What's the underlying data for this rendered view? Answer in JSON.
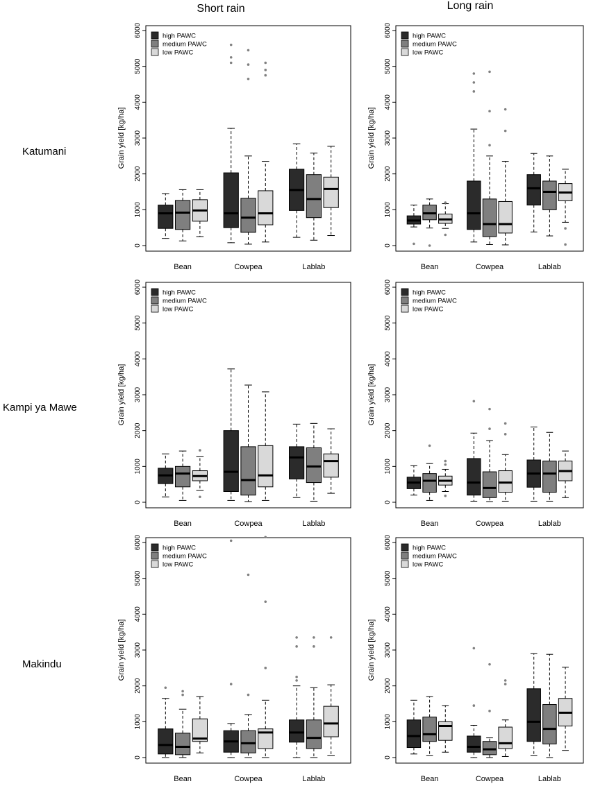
{
  "column_titles": [
    "Short rain",
    "Long rain"
  ],
  "row_labels": [
    "Katumani",
    "Kampi ya Mawe",
    "Makindu"
  ],
  "colors": {
    "high PAWC": "#2b2b2b",
    "medium PAWC": "#7f7f7f",
    "low PAWC": "#d9d9d9"
  },
  "chart_data": [
    {
      "type": "boxplot",
      "title": "Katumani – Short rain",
      "ylabel": "Grain yield [kg/ha]",
      "ylim": [
        0,
        6000
      ],
      "yticks": [
        0,
        1000,
        2000,
        3000,
        4000,
        5000,
        6000
      ],
      "categories": [
        "Bean",
        "Cowpea",
        "Lablab"
      ],
      "legend": [
        "high PAWC",
        "medium PAWC",
        "low PAWC"
      ],
      "legend_position": "top-left",
      "series": [
        {
          "name": "high PAWC",
          "boxes": [
            {
              "whisker_low": 200,
              "q1": 480,
              "median": 900,
              "q3": 1130,
              "whisker_high": 1450,
              "outliers": []
            },
            {
              "whisker_low": 80,
              "q1": 500,
              "median": 900,
              "q3": 2030,
              "whisker_high": 3270,
              "outliers": [
                5100,
                5250,
                5600
              ]
            },
            {
              "whisker_low": 230,
              "q1": 980,
              "median": 1550,
              "q3": 2130,
              "whisker_high": 2840,
              "outliers": []
            }
          ]
        },
        {
          "name": "medium PAWC",
          "boxes": [
            {
              "whisker_low": 130,
              "q1": 450,
              "median": 920,
              "q3": 1260,
              "whisker_high": 1560,
              "outliers": []
            },
            {
              "whisker_low": 40,
              "q1": 370,
              "median": 780,
              "q3": 1320,
              "whisker_high": 2500,
              "outliers": [
                4650,
                5050,
                5450
              ]
            },
            {
              "whisker_low": 150,
              "q1": 780,
              "median": 1300,
              "q3": 1980,
              "whisker_high": 2580,
              "outliers": []
            }
          ]
        },
        {
          "name": "low PAWC",
          "boxes": [
            {
              "whisker_low": 250,
              "q1": 680,
              "median": 980,
              "q3": 1280,
              "whisker_high": 1560,
              "outliers": []
            },
            {
              "whisker_low": 100,
              "q1": 580,
              "median": 900,
              "q3": 1530,
              "whisker_high": 2350,
              "outliers": [
                4750,
                4900,
                5100
              ]
            },
            {
              "whisker_low": 280,
              "q1": 1060,
              "median": 1580,
              "q3": 1910,
              "whisker_high": 2770,
              "outliers": []
            }
          ]
        }
      ]
    },
    {
      "type": "boxplot",
      "title": "Katumani – Long rain",
      "ylabel": "Grain yield [kg/ha]",
      "ylim": [
        0,
        6000
      ],
      "yticks": [
        0,
        1000,
        2000,
        3000,
        4000,
        5000,
        6000
      ],
      "categories": [
        "Bean",
        "Cowpea",
        "Lablab"
      ],
      "legend": [
        "high PAWC",
        "medium PAWC",
        "low PAWC"
      ],
      "legend_position": "top-left",
      "series": [
        {
          "name": "high PAWC",
          "boxes": [
            {
              "whisker_low": 520,
              "q1": 600,
              "median": 700,
              "q3": 830,
              "whisker_high": 1130,
              "outliers": [
                50
              ]
            },
            {
              "whisker_low": 100,
              "q1": 450,
              "median": 900,
              "q3": 1800,
              "whisker_high": 3250,
              "outliers": [
                4300,
                4550,
                4800
              ]
            },
            {
              "whisker_low": 380,
              "q1": 1130,
              "median": 1600,
              "q3": 1980,
              "whisker_high": 2570,
              "outliers": []
            }
          ]
        },
        {
          "name": "medium PAWC",
          "boxes": [
            {
              "whisker_low": 490,
              "q1": 720,
              "median": 900,
              "q3": 1130,
              "whisker_high": 1300,
              "outliers": [
                0
              ]
            },
            {
              "whisker_low": 30,
              "q1": 250,
              "median": 600,
              "q3": 1300,
              "whisker_high": 2500,
              "outliers": [
                2800,
                3750,
                4850
              ]
            },
            {
              "whisker_low": 270,
              "q1": 1000,
              "median": 1500,
              "q3": 1800,
              "whisker_high": 2500,
              "outliers": []
            }
          ]
        },
        {
          "name": "low PAWC",
          "boxes": [
            {
              "whisker_low": 480,
              "q1": 620,
              "median": 730,
              "q3": 880,
              "whisker_high": 1170,
              "outliers": [
                300,
                1200
              ]
            },
            {
              "whisker_low": 20,
              "q1": 350,
              "median": 600,
              "q3": 1230,
              "whisker_high": 2350,
              "outliers": [
                3200,
                3800
              ]
            },
            {
              "whisker_low": 650,
              "q1": 1250,
              "median": 1480,
              "q3": 1730,
              "whisker_high": 2130,
              "outliers": [
                30,
                480
              ]
            }
          ]
        }
      ]
    },
    {
      "type": "boxplot",
      "title": "Kampi ya Mawe – Short rain",
      "ylabel": "Grain yield [kg/ha]",
      "ylim": [
        0,
        6000
      ],
      "yticks": [
        0,
        1000,
        2000,
        3000,
        4000,
        5000,
        6000
      ],
      "categories": [
        "Bean",
        "Cowpea",
        "Lablab"
      ],
      "legend": [
        "high PAWC",
        "medium PAWC",
        "low PAWC"
      ],
      "legend_position": "top-left",
      "series": [
        {
          "name": "high PAWC",
          "boxes": [
            {
              "whisker_low": 150,
              "q1": 520,
              "median": 750,
              "q3": 950,
              "whisker_high": 1350,
              "outliers": []
            },
            {
              "whisker_low": 50,
              "q1": 300,
              "median": 850,
              "q3": 2000,
              "whisker_high": 3720,
              "outliers": []
            },
            {
              "whisker_low": 130,
              "q1": 650,
              "median": 1250,
              "q3": 1550,
              "whisker_high": 2180,
              "outliers": []
            }
          ]
        },
        {
          "name": "medium PAWC",
          "boxes": [
            {
              "whisker_low": 50,
              "q1": 430,
              "median": 800,
              "q3": 1000,
              "whisker_high": 1430,
              "outliers": []
            },
            {
              "whisker_low": 20,
              "q1": 200,
              "median": 620,
              "q3": 1550,
              "whisker_high": 3270,
              "outliers": []
            },
            {
              "whisker_low": 30,
              "q1": 550,
              "median": 1000,
              "q3": 1520,
              "whisker_high": 2200,
              "outliers": []
            }
          ]
        },
        {
          "name": "low PAWC",
          "boxes": [
            {
              "whisker_low": 330,
              "q1": 600,
              "median": 730,
              "q3": 880,
              "whisker_high": 1270,
              "outliers": [
                150,
                1450
              ]
            },
            {
              "whisker_low": 50,
              "q1": 430,
              "median": 750,
              "q3": 1580,
              "whisker_high": 3080,
              "outliers": []
            },
            {
              "whisker_low": 250,
              "q1": 700,
              "median": 1150,
              "q3": 1350,
              "whisker_high": 2050,
              "outliers": []
            }
          ]
        }
      ]
    },
    {
      "type": "boxplot",
      "title": "Kampi ya Mawe – Long rain",
      "ylabel": "Grain yield [kg/ha]",
      "ylim": [
        0,
        6000
      ],
      "yticks": [
        0,
        1000,
        2000,
        3000,
        4000,
        5000,
        6000
      ],
      "categories": [
        "Bean",
        "Cowpea",
        "Lablab"
      ],
      "legend": [
        "high PAWC",
        "medium PAWC",
        "low PAWC"
      ],
      "legend_position": "top-left",
      "series": [
        {
          "name": "high PAWC",
          "boxes": [
            {
              "whisker_low": 200,
              "q1": 380,
              "median": 550,
              "q3": 700,
              "whisker_high": 1020,
              "outliers": []
            },
            {
              "whisker_low": 30,
              "q1": 200,
              "median": 550,
              "q3": 1220,
              "whisker_high": 1930,
              "outliers": [
                2820
              ]
            },
            {
              "whisker_low": 30,
              "q1": 420,
              "median": 800,
              "q3": 1180,
              "whisker_high": 2100,
              "outliers": []
            }
          ]
        },
        {
          "name": "medium PAWC",
          "boxes": [
            {
              "whisker_low": 50,
              "q1": 280,
              "median": 600,
              "q3": 800,
              "whisker_high": 1080,
              "outliers": [
                1580
              ]
            },
            {
              "whisker_low": 20,
              "q1": 130,
              "median": 400,
              "q3": 850,
              "whisker_high": 1720,
              "outliers": [
                2050,
                2600
              ]
            },
            {
              "whisker_low": 30,
              "q1": 280,
              "median": 800,
              "q3": 1150,
              "whisker_high": 1950,
              "outliers": []
            }
          ]
        },
        {
          "name": "low PAWC",
          "boxes": [
            {
              "whisker_low": 300,
              "q1": 480,
              "median": 600,
              "q3": 730,
              "whisker_high": 920,
              "outliers": [
                180,
                1050,
                1150
              ]
            },
            {
              "whisker_low": 30,
              "q1": 280,
              "median": 550,
              "q3": 880,
              "whisker_high": 1330,
              "outliers": [
                1900,
                2200
              ]
            },
            {
              "whisker_low": 130,
              "q1": 600,
              "median": 870,
              "q3": 1150,
              "whisker_high": 1430,
              "outliers": []
            }
          ]
        }
      ]
    },
    {
      "type": "boxplot",
      "title": "Makindu – Short rain",
      "ylabel": "Grain yield [kg/ha]",
      "ylim": [
        0,
        6000
      ],
      "yticks": [
        0,
        1000,
        2000,
        3000,
        4000,
        5000,
        6000
      ],
      "categories": [
        "Bean",
        "Cowpea",
        "Lablab"
      ],
      "legend": [
        "high PAWC",
        "medium PAWC",
        "low PAWC"
      ],
      "legend_position": "top-left",
      "series": [
        {
          "name": "high PAWC",
          "boxes": [
            {
              "whisker_low": 0,
              "q1": 100,
              "median": 350,
              "q3": 800,
              "whisker_high": 1650,
              "outliers": [
                1950
              ]
            },
            {
              "whisker_low": 0,
              "q1": 150,
              "median": 450,
              "q3": 750,
              "whisker_high": 950,
              "outliers": [
                2050,
                6050
              ]
            },
            {
              "whisker_low": 0,
              "q1": 430,
              "median": 700,
              "q3": 1050,
              "whisker_high": 2000,
              "outliers": [
                2150,
                2250,
                3100,
                3350
              ]
            }
          ]
        },
        {
          "name": "medium PAWC",
          "boxes": [
            {
              "whisker_low": 0,
              "q1": 80,
              "median": 300,
              "q3": 680,
              "whisker_high": 1350,
              "outliers": [
                1750,
                1850
              ]
            },
            {
              "whisker_low": 0,
              "q1": 130,
              "median": 400,
              "q3": 750,
              "whisker_high": 1200,
              "outliers": [
                1750,
                5100
              ]
            },
            {
              "whisker_low": 0,
              "q1": 250,
              "median": 550,
              "q3": 1050,
              "whisker_high": 1950,
              "outliers": [
                3100,
                3350
              ]
            }
          ]
        },
        {
          "name": "low PAWC",
          "boxes": [
            {
              "whisker_low": 130,
              "q1": 450,
              "median": 530,
              "q3": 1080,
              "whisker_high": 1700,
              "outliers": []
            },
            {
              "whisker_low": 0,
              "q1": 250,
              "median": 700,
              "q3": 800,
              "whisker_high": 1600,
              "outliers": [
                2500,
                4350,
                6150
              ]
            },
            {
              "whisker_low": 50,
              "q1": 580,
              "median": 950,
              "q3": 1430,
              "whisker_high": 2030,
              "outliers": [
                3350
              ]
            }
          ]
        }
      ]
    },
    {
      "type": "boxplot",
      "title": "Makindu – Long rain",
      "ylabel": "Grain yield [kg/ha]",
      "ylim": [
        0,
        6000
      ],
      "yticks": [
        0,
        1000,
        2000,
        3000,
        4000,
        5000,
        6000
      ],
      "categories": [
        "Bean",
        "Cowpea",
        "Lablab"
      ],
      "legend": [
        "high PAWC",
        "medium PAWC",
        "low PAWC"
      ],
      "legend_position": "top-left",
      "series": [
        {
          "name": "high PAWC",
          "boxes": [
            {
              "whisker_low": 100,
              "q1": 280,
              "median": 600,
              "q3": 1050,
              "whisker_high": 1600,
              "outliers": []
            },
            {
              "whisker_low": 0,
              "q1": 150,
              "median": 300,
              "q3": 600,
              "whisker_high": 900,
              "outliers": [
                1450,
                3050
              ]
            },
            {
              "whisker_low": 50,
              "q1": 450,
              "median": 1000,
              "q3": 1920,
              "whisker_high": 2900,
              "outliers": []
            }
          ]
        },
        {
          "name": "medium PAWC",
          "boxes": [
            {
              "whisker_low": 50,
              "q1": 450,
              "median": 650,
              "q3": 1130,
              "whisker_high": 1700,
              "outliers": []
            },
            {
              "whisker_low": 0,
              "q1": 80,
              "median": 230,
              "q3": 450,
              "whisker_high": 550,
              "outliers": [
                1300,
                2600
              ]
            },
            {
              "whisker_low": 0,
              "q1": 380,
              "median": 800,
              "q3": 1480,
              "whisker_high": 2880,
              "outliers": []
            }
          ]
        },
        {
          "name": "low PAWC",
          "boxes": [
            {
              "whisker_low": 150,
              "q1": 480,
              "median": 880,
              "q3": 1000,
              "whisker_high": 1450,
              "outliers": []
            },
            {
              "whisker_low": 30,
              "q1": 250,
              "median": 400,
              "q3": 850,
              "whisker_high": 1050,
              "outliers": [
                2050,
                2150
              ]
            },
            {
              "whisker_low": 200,
              "q1": 880,
              "median": 1250,
              "q3": 1650,
              "whisker_high": 2520,
              "outliers": []
            }
          ]
        }
      ]
    }
  ]
}
